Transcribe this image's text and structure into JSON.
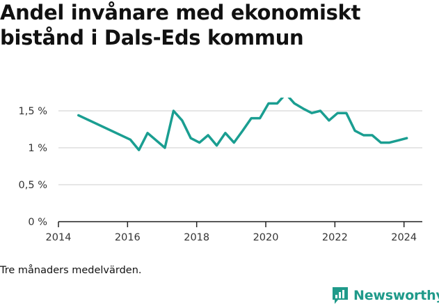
{
  "title_lines": [
    "Andel invånare med ekonomiskt",
    "bistånd i Dals-Eds kommun"
  ],
  "note": "Tre månaders medelvärden.",
  "logo_text": "Newsworthy",
  "colors": {
    "line": "#1a9e91",
    "grid": "#dddddd",
    "axis": "#222222",
    "logo": "#1f9a8a"
  },
  "chart_data": {
    "type": "line",
    "title": "Andel invånare med ekonomiskt bistånd i Dals-Eds kommun",
    "xlabel": "",
    "ylabel": "",
    "xlim": [
      2014,
      2025
    ],
    "ylim": [
      0,
      2.0
    ],
    "x_ticks": [
      2014,
      2016,
      2018,
      2020,
      2022,
      2024
    ],
    "x_tick_labels": [
      "2014",
      "2016",
      "2018",
      "2020",
      "2022",
      "2024"
    ],
    "y_ticks": [
      0,
      0.5,
      1.0,
      1.5
    ],
    "y_tick_labels": [
      "0 %",
      "0,5 %",
      "1 %",
      "1,5 %"
    ],
    "grid": true,
    "series": [
      {
        "name": "",
        "x": [
          2014.58,
          2016.08,
          2016.33,
          2016.58,
          2017.08,
          2017.33,
          2017.58,
          2017.83,
          2018.08,
          2018.33,
          2018.58,
          2018.83,
          2019.08,
          2019.33,
          2019.58,
          2019.83,
          2020.08,
          2020.33,
          2020.58,
          2020.83,
          2021.08,
          2021.33,
          2021.58,
          2021.83,
          2022.08,
          2022.33,
          2022.58,
          2022.83,
          2023.08,
          2023.33,
          2023.58,
          2023.83,
          2024.08
        ],
        "values": [
          1.44,
          1.11,
          0.97,
          1.2,
          1.0,
          1.5,
          1.37,
          1.13,
          1.07,
          1.17,
          1.03,
          1.2,
          1.07,
          1.23,
          1.4,
          1.4,
          1.6,
          1.6,
          1.73,
          1.6,
          1.53,
          1.47,
          1.5,
          1.37,
          1.47,
          1.47,
          1.23,
          1.17,
          1.17,
          1.07,
          1.07,
          1.1,
          1.13
        ]
      }
    ]
  }
}
